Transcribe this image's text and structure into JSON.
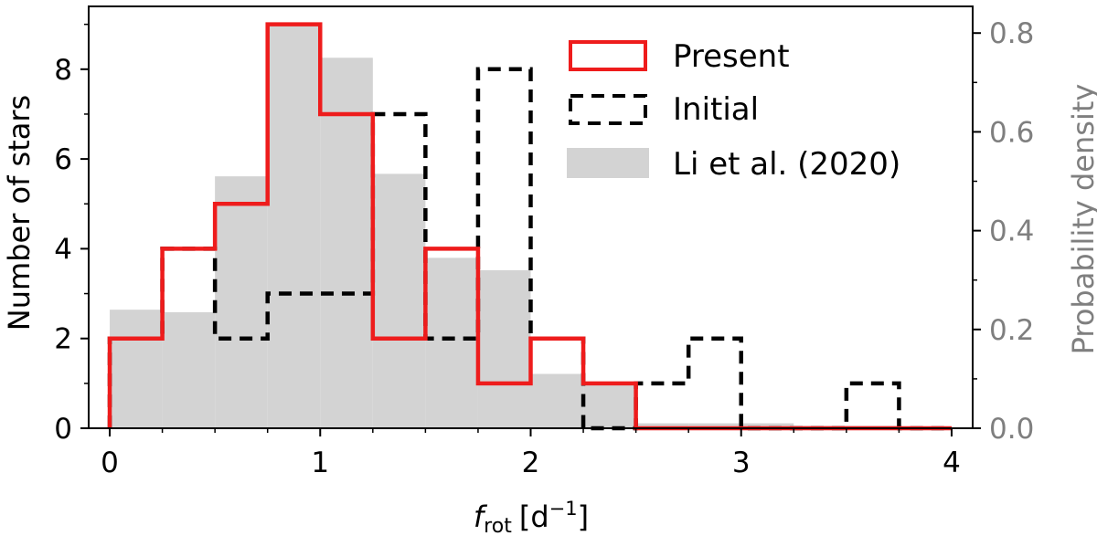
{
  "chart_data": {
    "type": "bar",
    "subtype": "histogram-dual-axis",
    "bin_edges": [
      0,
      0.25,
      0.5,
      0.75,
      1.0,
      1.25,
      1.5,
      1.75,
      2.0,
      2.25,
      2.5,
      2.75,
      3.0,
      3.25,
      3.5,
      3.75,
      4.0
    ],
    "series": [
      {
        "name": "Li et al. (2020)",
        "style": "filled",
        "color": "#d3d3d3",
        "axis": "right",
        "values": [
          0.24,
          0.235,
          0.51,
          0.82,
          0.75,
          0.515,
          0.345,
          0.32,
          0.11,
          0.09,
          0.01,
          0.01,
          0.01,
          0.005,
          0.005,
          0.0
        ]
      },
      {
        "name": "Initial",
        "style": "dashed-step",
        "color": "#000000",
        "axis": "left",
        "values": [
          2,
          4,
          2,
          3,
          3,
          7,
          2,
          8,
          2,
          0,
          1,
          2,
          0,
          0,
          1,
          0
        ]
      },
      {
        "name": "Present",
        "style": "solid-step",
        "color": "#ee1c1c",
        "axis": "left",
        "values": [
          2,
          4,
          5,
          9,
          7,
          2,
          4,
          1,
          2,
          1,
          0,
          0,
          0,
          0,
          0,
          0
        ]
      }
    ],
    "x_ticks": [
      "0",
      "1",
      "2",
      "3",
      "4"
    ],
    "y_ticks_left": [
      "0",
      "2",
      "4",
      "6",
      "8"
    ],
    "y_ticks_right": [
      "0.0",
      "0.2",
      "0.4",
      "0.6",
      "0.8"
    ],
    "xlabel_main": "f",
    "xlabel_sub": "rot",
    "xlabel_unit": "[d",
    "xlabel_exp": "−1",
    "xlabel_close": "]",
    "ylabel_left": "Number of stars",
    "ylabel_right": "Probability density",
    "xlim": [
      -0.1,
      4.1
    ],
    "ylim_left": [
      0,
      9.4
    ],
    "ylim_right": [
      0,
      0.854
    ],
    "legend_position": "top-right",
    "legend": [
      "Present",
      "Initial",
      "Li et al. (2020)"
    ]
  }
}
